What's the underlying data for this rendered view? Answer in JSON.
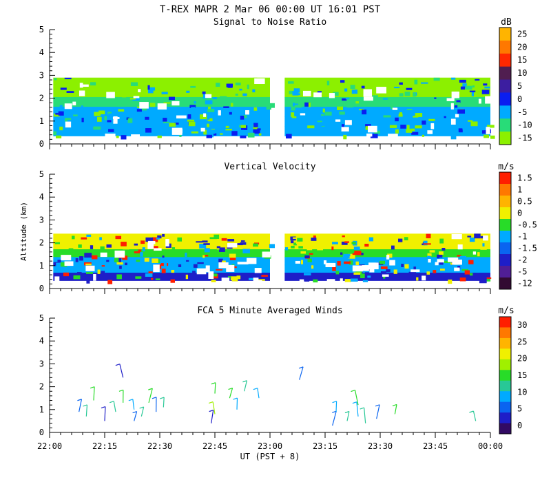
{
  "header": {
    "title": "T-REX   MAPR   2 Mar 06   00:00 UT   16:01   PST"
  },
  "chart_data": [
    {
      "type": "heatmap",
      "title": "Signal to Noise Ratio",
      "ylabel": "",
      "ylim": [
        0,
        5
      ],
      "yticks": [
        "0",
        "1",
        "2",
        "3",
        "4",
        "5"
      ],
      "colorbar_unit": "dB",
      "colorbar_labels": [
        "25",
        "20",
        "15",
        "10",
        "5",
        "0",
        "-5",
        "-10",
        "-15"
      ],
      "colorbar_colors": [
        "#ffb400",
        "#ff7800",
        "#ff2800",
        "#501e50",
        "#3c1ea0",
        "#0a1ef0",
        "#00aaff",
        "#28dc78",
        "#8cf000"
      ],
      "data_gap": [
        "23:00",
        "23:04"
      ],
      "regions": [
        {
          "x0": "22:01",
          "x1": "23:00",
          "y0": 0.35,
          "y1": 2.9
        },
        {
          "x0": "23:04",
          "x1": "00:00",
          "y0": 0.35,
          "y1": 2.9
        }
      ],
      "colors": {
        "high": "#8cf000",
        "mid": "#28dc78",
        "low": "#00aaff",
        "strong": "#0a1ef0"
      }
    },
    {
      "type": "heatmap",
      "title": "Vertical Velocity",
      "ylabel": "Altitude (km)",
      "ylim": [
        0,
        5
      ],
      "yticks": [
        "0",
        "1",
        "2",
        "3",
        "4",
        "5"
      ],
      "colorbar_unit": "m/s",
      "colorbar_labels": [
        "1.5",
        "1",
        "0.5",
        "0",
        "-0.5",
        "-1",
        "-1.5",
        "-2",
        "-5",
        "-12"
      ],
      "colorbar_colors": [
        "#ff1e00",
        "#ff7800",
        "#ffb400",
        "#f0f000",
        "#28dc28",
        "#00aaff",
        "#0a64f0",
        "#1e1ec8",
        "#501e96",
        "#320a32"
      ],
      "data_gap": [
        "23:00",
        "23:04"
      ],
      "regions": [
        {
          "x0": "22:01",
          "x1": "23:00",
          "y0": 0.35,
          "y1": 2.4
        },
        {
          "x0": "23:04",
          "x1": "00:00",
          "y0": 0.35,
          "y1": 2.4
        }
      ],
      "colors": {
        "top": "#f0f000",
        "a": "#28dc28",
        "b": "#00aaff",
        "c": "#1e1ec8",
        "d": "#ff1e00"
      }
    },
    {
      "type": "scatter",
      "title": "FCA 5 Minute Averaged Winds",
      "ylabel": "",
      "xlabel": "UT  (PST + 8)",
      "ylim": [
        0,
        5
      ],
      "yticks": [
        "0",
        "1",
        "2",
        "3",
        "4",
        "5"
      ],
      "xticks": [
        "22:00",
        "22:15",
        "22:30",
        "22:45",
        "23:00",
        "23:15",
        "23:30",
        "23:45",
        "00:00"
      ],
      "colorbar_unit": "m/s",
      "colorbar_labels": [
        "30",
        "25",
        "20",
        "15",
        "10",
        "5",
        "0"
      ],
      "colorbar_colors": [
        "#ff1e00",
        "#ff7800",
        "#ffb400",
        "#f0f000",
        "#a0f000",
        "#28dc28",
        "#28c896",
        "#00aaff",
        "#0a64f0",
        "#1e1ec8",
        "#320a64"
      ],
      "barbs": [
        {
          "t": "22:08",
          "alt": 0.9,
          "color": "#0a64f0"
        },
        {
          "t": "22:10",
          "alt": 0.7,
          "color": "#28c896"
        },
        {
          "t": "22:12",
          "alt": 1.4,
          "color": "#28dc28"
        },
        {
          "t": "22:15",
          "alt": 0.5,
          "color": "#1e1ec8"
        },
        {
          "t": "22:18",
          "alt": 0.9,
          "color": "#28c896"
        },
        {
          "t": "22:20",
          "alt": 1.3,
          "color": "#28dc28"
        },
        {
          "t": "22:20",
          "alt": 2.4,
          "color": "#1e1ec8"
        },
        {
          "t": "22:23",
          "alt": 1.0,
          "color": "#00aaff"
        },
        {
          "t": "22:23",
          "alt": 0.5,
          "color": "#0a64f0"
        },
        {
          "t": "22:25",
          "alt": 0.7,
          "color": "#28c896"
        },
        {
          "t": "22:27",
          "alt": 1.3,
          "color": "#28dc28"
        },
        {
          "t": "22:29",
          "alt": 0.9,
          "color": "#0a64f0"
        },
        {
          "t": "22:31",
          "alt": 1.1,
          "color": "#28c896"
        },
        {
          "t": "22:44",
          "alt": 0.4,
          "color": "#1e1ec8"
        },
        {
          "t": "22:45",
          "alt": 0.8,
          "color": "#a0f000"
        },
        {
          "t": "22:45",
          "alt": 1.7,
          "color": "#28dc28"
        },
        {
          "t": "22:49",
          "alt": 1.5,
          "color": "#28dc28"
        },
        {
          "t": "22:51",
          "alt": 1.0,
          "color": "#00aaff"
        },
        {
          "t": "22:53",
          "alt": 1.8,
          "color": "#28c896"
        },
        {
          "t": "22:57",
          "alt": 1.5,
          "color": "#00aaff"
        },
        {
          "t": "23:08",
          "alt": 2.3,
          "color": "#0a64f0"
        },
        {
          "t": "23:17",
          "alt": 0.3,
          "color": "#0a64f0"
        },
        {
          "t": "23:18",
          "alt": 0.9,
          "color": "#00aaff"
        },
        {
          "t": "23:21",
          "alt": 0.5,
          "color": "#28c896"
        },
        {
          "t": "23:24",
          "alt": 1.2,
          "color": "#28dc28"
        },
        {
          "t": "23:24",
          "alt": 0.7,
          "color": "#00aaff"
        },
        {
          "t": "23:26",
          "alt": 0.4,
          "color": "#28c896"
        },
        {
          "t": "23:29",
          "alt": 0.6,
          "color": "#0a64f0"
        },
        {
          "t": "23:34",
          "alt": 0.8,
          "color": "#28dc28"
        },
        {
          "t": "23:56",
          "alt": 0.5,
          "color": "#28c896"
        }
      ]
    }
  ]
}
